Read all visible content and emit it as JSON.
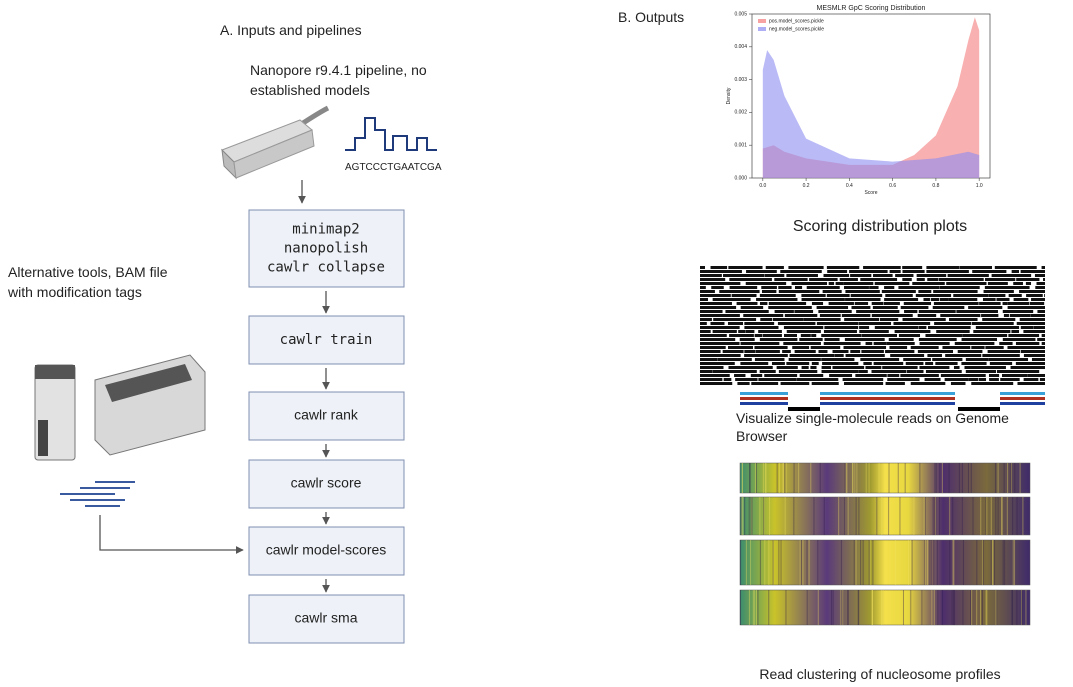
{
  "panel_a": {
    "heading": "A.  Inputs and pipelines",
    "nanopore_label": [
      "Nanopore r9.4.1 pipeline, no",
      "established models"
    ],
    "sequence": "AGTCCCTGAATCGA",
    "alt_label": [
      "Alternative tools, BAM file",
      "with modification tags"
    ],
    "steps": [
      [
        "minimap2",
        "nanopolish",
        "cawlr collapse"
      ],
      [
        "cawlr train"
      ],
      [
        "cawlr rank"
      ],
      [
        "cawlr score"
      ],
      [
        "cawlr model-scores"
      ],
      [
        "cawlr sma"
      ]
    ]
  },
  "panel_b": {
    "heading": "B. Outputs",
    "scoring_caption": "Scoring distribution plots",
    "browser_caption": [
      "Visualize single-molecule reads on Genome",
      "Browser"
    ],
    "cluster_caption": "Read clustering of nucleosome profiles"
  },
  "chart_data": {
    "type": "area",
    "title": "MESMLR GpC Scoring Distribution",
    "xlabel": "Score",
    "ylabel": "Density",
    "xlim": [
      -0.05,
      1.05
    ],
    "ylim": [
      0,
      0.005
    ],
    "xticks": [
      {
        "value": 0,
        "label": "0.0"
      },
      0.2,
      0.4,
      0.6,
      0.8,
      {
        "value": 1,
        "label": "1.0"
      }
    ],
    "yticks": [
      {
        "value": 0,
        "label": "0.000"
      },
      {
        "value": 0.001,
        "label": "0.001"
      },
      {
        "value": 0.002,
        "label": "0.002"
      },
      {
        "value": 0.003,
        "label": "0.003"
      },
      {
        "value": 0.004,
        "label": "0.004"
      },
      {
        "value": 0.005,
        "label": "0.005"
      }
    ],
    "series": [
      {
        "name": "pos.model_scores.pickle",
        "color": "#f47c7c",
        "x": [
          0,
          0.05,
          0.1,
          0.2,
          0.4,
          0.6,
          0.7,
          0.8,
          0.9,
          0.95,
          0.98,
          1
        ],
        "values": [
          0.0009,
          0.001,
          0.0008,
          0.0006,
          0.0004,
          0.0004,
          0.0007,
          0.0013,
          0.0028,
          0.0042,
          0.0049,
          0.0045
        ]
      },
      {
        "name": "neg.model_scores.pickle",
        "color": "#8c8cf2",
        "x": [
          0,
          0.02,
          0.05,
          0.1,
          0.2,
          0.4,
          0.6,
          0.8,
          0.95,
          1
        ],
        "values": [
          0.0033,
          0.0039,
          0.0036,
          0.0025,
          0.0012,
          0.0006,
          0.0005,
          0.0006,
          0.0008,
          0.0007
        ]
      }
    ]
  }
}
